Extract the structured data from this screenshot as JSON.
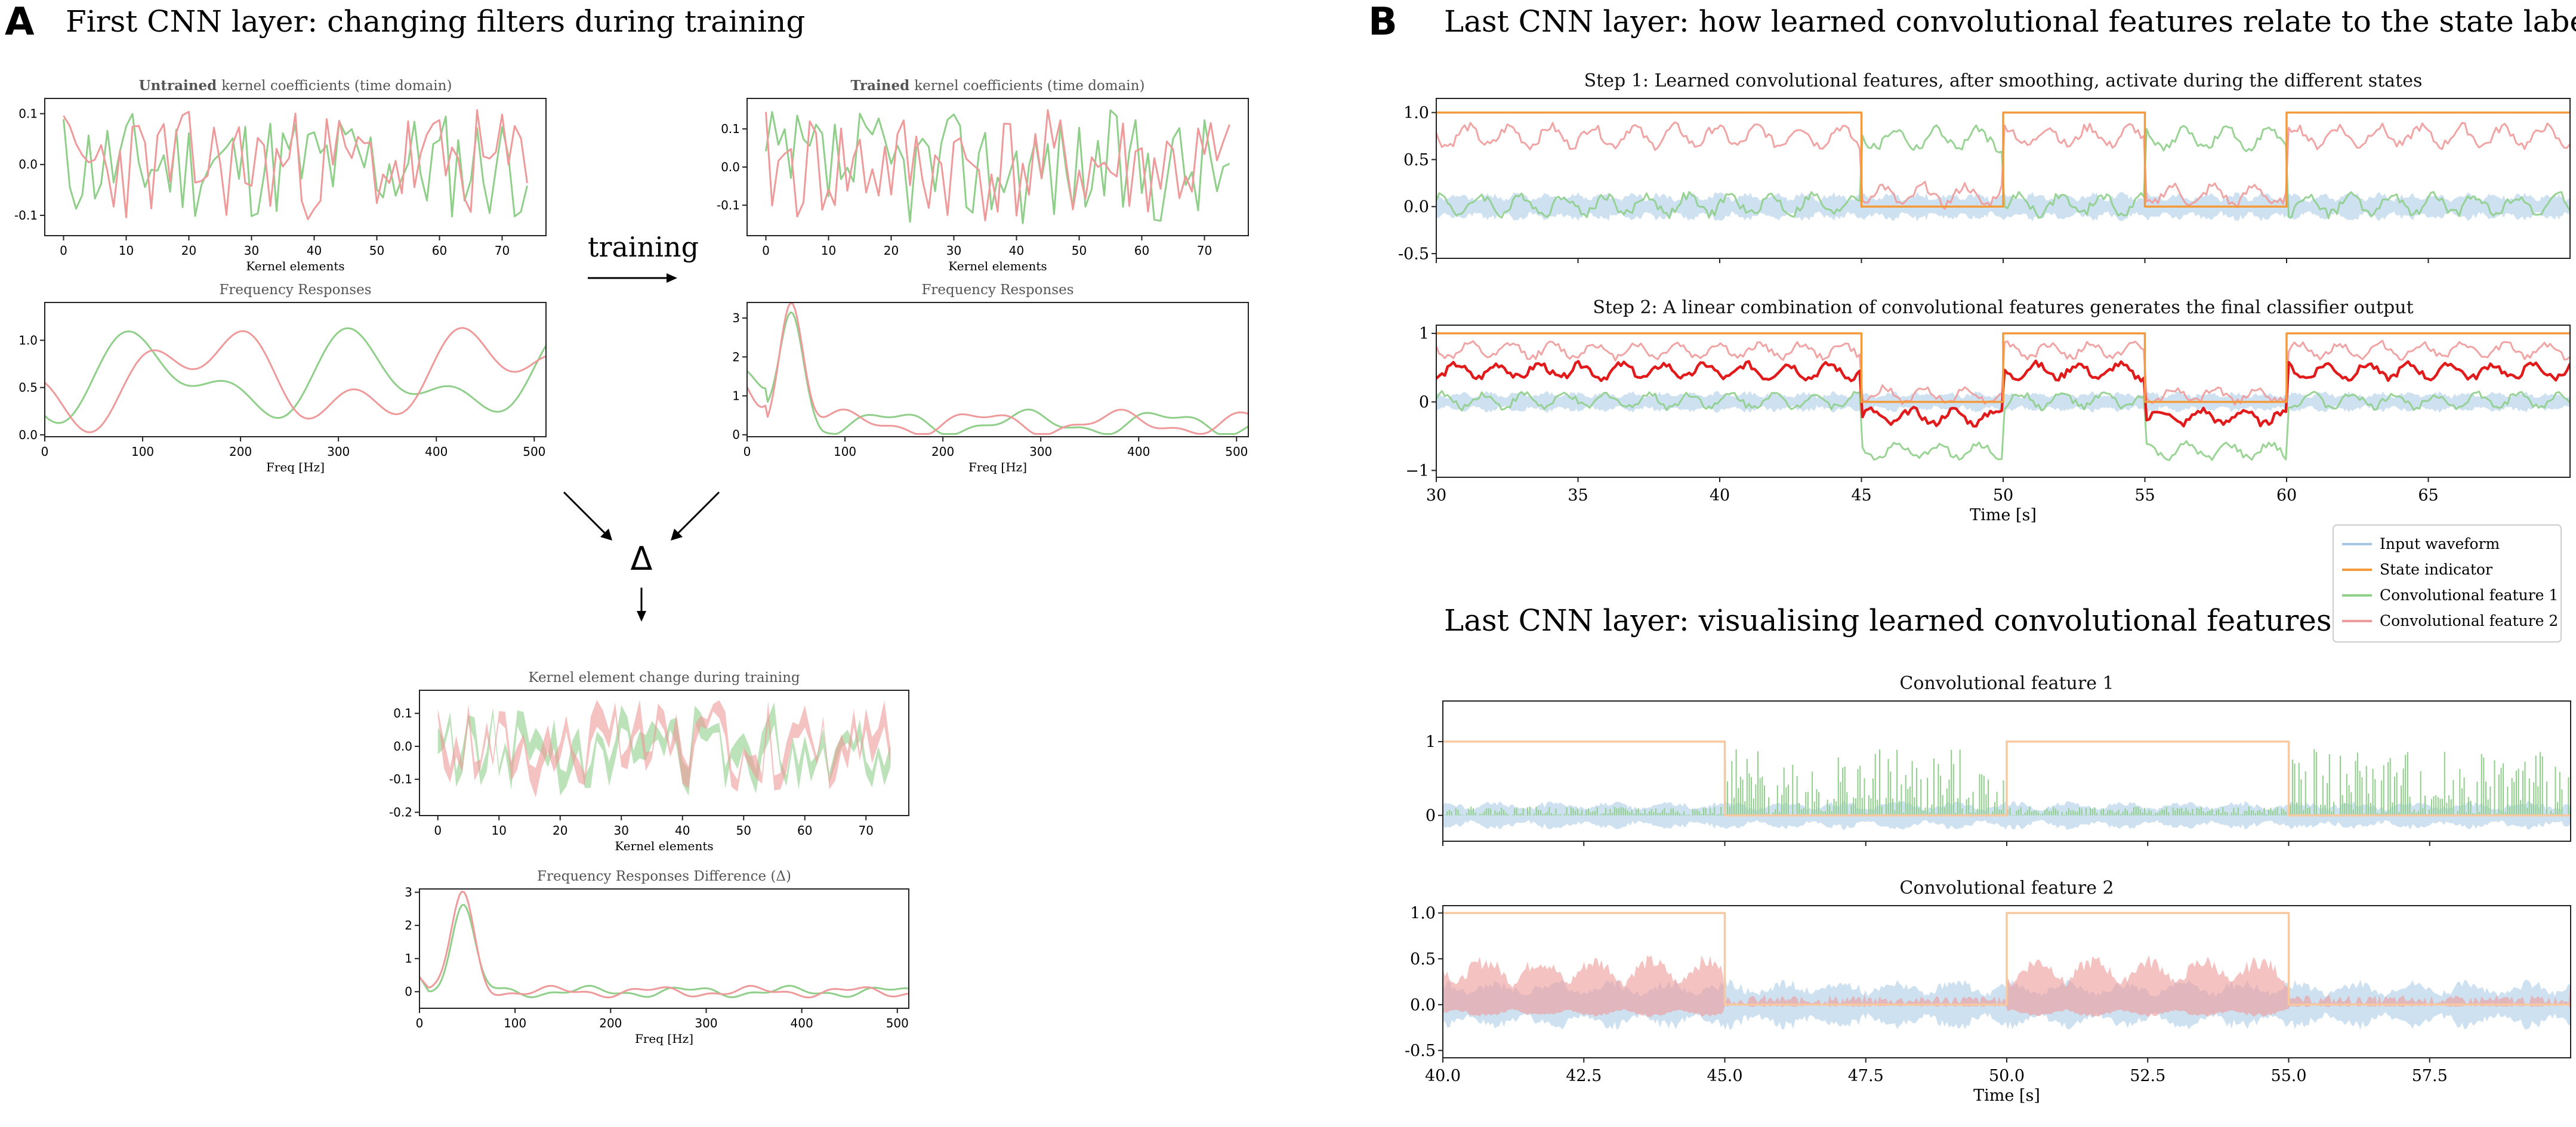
{
  "panel_a": {
    "letter": "A",
    "title": "First CNN layer: changing filters during training",
    "training_label": "training",
    "delta_symbol": "Δ"
  },
  "panel_b": {
    "letter": "B",
    "title": "Last CNN layer: how learned convolutional features relate to the state label",
    "title2": "Last CNN layer: visualising learned convolutional features"
  },
  "legend": {
    "entries": [
      "Input waveform",
      "State indicator",
      "Convolutional feature 1",
      "Convolutional feature 2"
    ]
  },
  "colors": {
    "input": "#a6c8e6",
    "state": "#f39a3c",
    "state_faint": "#f8c9a0",
    "feature1": "#8fcf8a",
    "feature2": "#ee9a9a",
    "output": "#e11b1b"
  },
  "chart_data": [
    {
      "id": "a1",
      "type": "line",
      "title_bold": "Untrained",
      "title": "kernel coefficients (time domain)",
      "xlabel": "Kernel elements",
      "ylabel": "",
      "xlim": [
        -3,
        77
      ],
      "ylim": [
        -0.14,
        0.13
      ],
      "xticks": [
        0,
        10,
        20,
        30,
        40,
        50,
        60,
        70
      ],
      "yticks": [
        -0.1,
        0.0,
        0.1
      ],
      "ytick_labels": [
        "-0.1",
        "0.0",
        "0.1"
      ],
      "series": [
        {
          "name": "Convolutional feature 1",
          "gen": "noise",
          "seed": 11,
          "amp": 0.11,
          "x0": 0,
          "x1": 74,
          "n": 75
        },
        {
          "name": "Convolutional feature 2",
          "gen": "noise",
          "seed": 23,
          "amp": 0.11,
          "x0": 0,
          "x1": 74,
          "n": 75
        }
      ]
    },
    {
      "id": "a2",
      "type": "line",
      "title_bold": "Trained",
      "title": "kernel coefficients (time domain)",
      "xlabel": "Kernel elements",
      "ylabel": "",
      "xlim": [
        -3,
        77
      ],
      "ylim": [
        -0.18,
        0.18
      ],
      "xticks": [
        0,
        10,
        20,
        30,
        40,
        50,
        60,
        70
      ],
      "yticks": [
        -0.1,
        0.0,
        0.1
      ],
      "ytick_labels": [
        "-0.1",
        "0.0",
        "0.1"
      ],
      "series": [
        {
          "name": "Convolutional feature 1",
          "gen": "noise",
          "seed": 37,
          "amp": 0.15,
          "x0": 0,
          "x1": 74,
          "n": 75
        },
        {
          "name": "Convolutional feature 2",
          "gen": "noise",
          "seed": 41,
          "amp": 0.15,
          "x0": 0,
          "x1": 74,
          "n": 75
        }
      ]
    },
    {
      "id": "a3",
      "type": "line",
      "title": "Frequency Responses",
      "xlabel": "Freq [Hz]",
      "ylabel": "",
      "xlim": [
        0,
        512
      ],
      "ylim": [
        -0.02,
        1.4
      ],
      "xticks": [
        0,
        100,
        200,
        300,
        400,
        500
      ],
      "yticks": [
        0.0,
        0.5,
        1.0
      ],
      "ytick_labels": [
        "0.0",
        "0.5",
        "1.0"
      ],
      "series": [
        {
          "name": "Convolutional feature 1",
          "gen": "wave",
          "seed": 5,
          "base": 0.6,
          "amp": 0.55,
          "x0": 0,
          "x1": 512,
          "n": 220
        },
        {
          "name": "Convolutional feature 2",
          "gen": "wave",
          "seed": 9,
          "base": 0.6,
          "amp": 0.6,
          "x0": 0,
          "x1": 512,
          "n": 220
        }
      ]
    },
    {
      "id": "a4",
      "type": "line",
      "title": "Frequency Responses",
      "xlabel": "Freq [Hz]",
      "ylabel": "",
      "xlim": [
        0,
        512
      ],
      "ylim": [
        -0.05,
        3.4
      ],
      "xticks": [
        0,
        100,
        200,
        300,
        400,
        500
      ],
      "yticks": [
        0,
        1,
        2,
        3
      ],
      "ytick_labels": [
        "0",
        "1",
        "2",
        "3"
      ],
      "series": [
        {
          "name": "Convolutional feature 1",
          "gen": "peak",
          "seed": 3,
          "peak": 2.9,
          "x0": 0,
          "x1": 512,
          "n": 220
        },
        {
          "name": "Convolutional feature 2",
          "gen": "peak",
          "seed": 7,
          "peak": 3.2,
          "x0": 0,
          "x1": 512,
          "n": 220
        }
      ]
    },
    {
      "id": "a5",
      "type": "area",
      "title": "Kernel element change during training",
      "xlabel": "Kernel elements",
      "ylabel": "",
      "xlim": [
        -3,
        77
      ],
      "ylim": [
        -0.21,
        0.17
      ],
      "xticks": [
        0,
        10,
        20,
        30,
        40,
        50,
        60,
        70
      ],
      "yticks": [
        -0.2,
        -0.1,
        0.0,
        0.1
      ],
      "ytick_labels": [
        "-0.2",
        "-0.1",
        "0.0",
        "0.1"
      ],
      "series": [
        {
          "name": "Convolutional feature 1",
          "gen": "band",
          "seed": 13,
          "amp": 0.11,
          "x0": 0,
          "x1": 74,
          "n": 75
        },
        {
          "name": "Convolutional feature 2",
          "gen": "band",
          "seed": 17,
          "amp": 0.12,
          "x0": 0,
          "x1": 74,
          "n": 75
        }
      ]
    },
    {
      "id": "a6",
      "type": "line",
      "title": "Frequency Responses Difference (Δ)",
      "xlabel": "Freq [Hz]",
      "ylabel": "",
      "xlim": [
        0,
        512
      ],
      "ylim": [
        -0.5,
        3.1
      ],
      "xticks": [
        0,
        100,
        200,
        300,
        400,
        500
      ],
      "yticks": [
        0,
        1,
        2,
        3
      ],
      "ytick_labels": [
        "0",
        "1",
        "2",
        "3"
      ],
      "series": [
        {
          "name": "Convolutional feature 1",
          "gen": "peakdiff",
          "seed": 19,
          "peak": 2.6,
          "x0": 0,
          "x1": 512,
          "n": 220
        },
        {
          "name": "Convolutional feature 2",
          "gen": "peakdiff",
          "seed": 29,
          "peak": 2.9,
          "x0": 0,
          "x1": 512,
          "n": 220
        }
      ]
    },
    {
      "id": "b1",
      "type": "line",
      "title": "Step 1: Learned convolutional features, after smoothing, activate during the different states",
      "xlabel": "",
      "ylabel": "",
      "xlim": [
        30,
        70
      ],
      "ylim": [
        -0.55,
        1.15
      ],
      "xticks": [
        30,
        35,
        40,
        45,
        50,
        55,
        60,
        65
      ],
      "yticks": [
        -0.5,
        0.0,
        0.5,
        1.0
      ],
      "ytick_labels": [
        "-0.5",
        "0.0",
        "0.5",
        "1.0"
      ],
      "show_xtick_labels": false,
      "series": [
        {
          "name": "Input waveform",
          "gen": "envelope",
          "seed": 2,
          "amp": 0.16,
          "x0": 30,
          "x1": 70,
          "n": 600
        },
        {
          "name": "Convolutional feature 1",
          "gen": "state_feature",
          "seed": 4,
          "hi": 0.72,
          "lo": 0.02,
          "inverse": true,
          "x0": 30,
          "x1": 70,
          "n": 400
        },
        {
          "name": "Convolutional feature 2",
          "gen": "state_feature",
          "seed": 6,
          "hi": 0.75,
          "lo": 0.12,
          "inverse": false,
          "x0": 30,
          "x1": 70,
          "n": 400
        },
        {
          "name": "State indicator",
          "gen": "state",
          "x": [
            30,
            45,
            45,
            50,
            50,
            55,
            55,
            60,
            60,
            70
          ],
          "y": [
            1,
            1,
            0,
            0,
            1,
            1,
            0,
            0,
            1,
            1
          ]
        }
      ]
    },
    {
      "id": "b2",
      "type": "line",
      "title": "Step 2: A linear combination of convolutional features generates the final classifier output",
      "xlabel": "Time [s]",
      "ylabel": "",
      "xlim": [
        30,
        70
      ],
      "ylim": [
        -1.1,
        1.12
      ],
      "xticks": [
        30,
        35,
        40,
        45,
        50,
        55,
        60,
        65
      ],
      "yticks": [
        -1,
        0,
        1
      ],
      "ytick_labels": [
        "−1",
        "0",
        "1"
      ],
      "xtick_labels": [
        "30",
        "35",
        "40",
        "45",
        "50",
        "55",
        "60",
        "65"
      ],
      "series": [
        {
          "name": "Input waveform",
          "gen": "envelope",
          "seed": 8,
          "amp": 0.16,
          "x0": 30,
          "x1": 70,
          "n": 600
        },
        {
          "name": "Convolutional feature 1",
          "gen": "state_feature",
          "seed": 10,
          "hi": 0.02,
          "lo": -0.72,
          "inverse": false,
          "x0": 30,
          "x1": 70,
          "n": 400
        },
        {
          "name": "Convolutional feature 2",
          "gen": "state_feature",
          "seed": 12,
          "hi": 0.75,
          "lo": 0.1,
          "inverse": false,
          "x0": 30,
          "x1": 70,
          "n": 400
        },
        {
          "name": "Classifier output",
          "gen": "state_feature",
          "seed": 14,
          "hi": 0.45,
          "lo": -0.22,
          "inverse": false,
          "x0": 30,
          "x1": 70,
          "n": 400
        },
        {
          "name": "State indicator",
          "gen": "state",
          "x": [
            30,
            45,
            45,
            50,
            50,
            55,
            55,
            60,
            60,
            70
          ],
          "y": [
            1,
            1,
            0,
            0,
            1,
            1,
            0,
            0,
            1,
            1
          ]
        }
      ]
    },
    {
      "id": "b3",
      "type": "line",
      "title": "Convolutional feature 1",
      "xlabel": "",
      "ylabel": "",
      "xlim": [
        40,
        60
      ],
      "ylim": [
        -0.35,
        1.55
      ],
      "xticks": [
        40,
        42.5,
        45,
        47.5,
        50,
        52.5,
        55,
        57.5
      ],
      "yticks": [
        0,
        1
      ],
      "ytick_labels": [
        "0",
        "1"
      ],
      "show_xtick_labels": false,
      "series": [
        {
          "name": "Input waveform",
          "gen": "envelope",
          "seed": 21,
          "amp": 0.2,
          "x0": 40,
          "x1": 60,
          "n": 500
        },
        {
          "name": "Convolutional feature 1",
          "gen": "spikes",
          "seed": 22,
          "high_state": false,
          "max": 0.9,
          "x0": 40,
          "x1": 60,
          "n": 520
        },
        {
          "name": "State indicator",
          "gen": "state",
          "x": [
            40,
            45,
            45,
            50,
            50,
            55,
            55,
            60
          ],
          "y": [
            1,
            1,
            0,
            0,
            1,
            1,
            0,
            0
          ]
        }
      ]
    },
    {
      "id": "b4",
      "type": "line",
      "title": "Convolutional feature 2",
      "xlabel": "Time [s]",
      "ylabel": "",
      "xlim": [
        40,
        60
      ],
      "ylim": [
        -0.58,
        1.08
      ],
      "xticks": [
        40,
        42.5,
        45,
        47.5,
        50,
        52.5,
        55,
        57.5
      ],
      "yticks": [
        -0.5,
        0.0,
        0.5,
        1.0
      ],
      "ytick_labels": [
        "-0.5",
        "0.0",
        "0.5",
        "1.0"
      ],
      "xtick_labels": [
        "40.0",
        "42.5",
        "45.0",
        "47.5",
        "50.0",
        "52.5",
        "55.0",
        "57.5"
      ],
      "series": [
        {
          "name": "Input waveform",
          "gen": "envelope",
          "seed": 31,
          "amp": 0.28,
          "x0": 40,
          "x1": 60,
          "n": 500
        },
        {
          "name": "Convolutional feature 2",
          "gen": "bursts",
          "seed": 32,
          "max": 0.55,
          "x0": 40,
          "x1": 60,
          "n": 520
        },
        {
          "name": "State indicator",
          "gen": "state",
          "x": [
            40,
            45,
            45,
            50,
            50,
            55,
            55,
            60
          ],
          "y": [
            1,
            1,
            0,
            0,
            1,
            1,
            0,
            0
          ]
        }
      ]
    }
  ]
}
